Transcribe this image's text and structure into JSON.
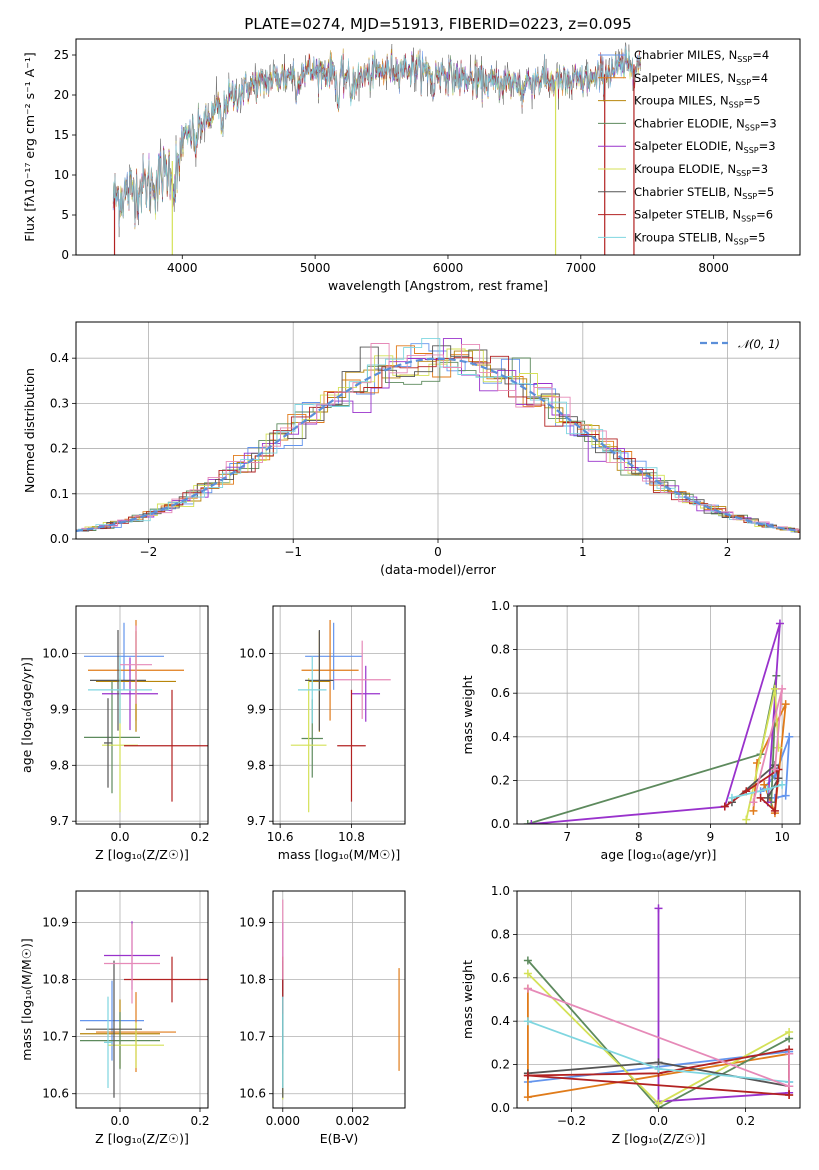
{
  "colors": {
    "chabrier_miles": "#6495ed",
    "salpeter_miles": "#e07b1a",
    "kroupa_miles": "#b8860b",
    "chabrier_elodie": "#5d8a5d",
    "salpeter_elodie": "#9932cc",
    "kroupa_elodie": "#d4e157",
    "chabrier_stelib": "#555555",
    "salpeter_stelib": "#b22222",
    "kroupa_stelib": "#7fd6e0",
    "extra_pink": "#e68ab8",
    "gauss": "#5b8fd9"
  },
  "chart_data": [
    {
      "id": "spectrum",
      "type": "line",
      "title": "PLATE=0274, MJD=51913, FIBERID=0223, z=0.095",
      "xlabel": "wavelength [Angstrom, rest frame]",
      "ylabel": "Flux [fλ10⁻¹⁷ erg cm⁻² s⁻¹ A⁻¹]",
      "xlim": [
        3200,
        8650
      ],
      "ylim": [
        0,
        27
      ],
      "xticks": [
        "4000",
        "5000",
        "6000",
        "7000",
        "8000"
      ],
      "yticks": [
        "0",
        "5",
        "10",
        "15",
        "20",
        "25"
      ],
      "continuum": {
        "x": [
          3480,
          3600,
          3700,
          3800,
          3900,
          4000,
          4100,
          4200,
          4300,
          4400,
          4500,
          4700,
          4900,
          5100,
          5300,
          5500,
          5700,
          5900,
          6100,
          6300,
          6500,
          6700,
          6900,
          7100,
          7300,
          7450
        ],
        "y": [
          7,
          8,
          8.5,
          9,
          11,
          14,
          16,
          17,
          19,
          20,
          21,
          22,
          23,
          23,
          22,
          23,
          23.5,
          23,
          22,
          21.5,
          21.5,
          22,
          21.5,
          22,
          23.5,
          24
        ]
      },
      "legend": [
        {
          "label": "Chabrier MILES, N",
          "sub": "SSP",
          "tail": "=4",
          "color": "#6495ed"
        },
        {
          "label": "Salpeter MILES, N",
          "sub": "SSP",
          "tail": "=4",
          "color": "#e07b1a"
        },
        {
          "label": "Kroupa MILES, N",
          "sub": "SSP",
          "tail": "=5",
          "color": "#b8860b"
        },
        {
          "label": "Chabrier ELODIE, N",
          "sub": "SSP",
          "tail": "=3",
          "color": "#5d8a5d"
        },
        {
          "label": "Salpeter ELODIE, N",
          "sub": "SSP",
          "tail": "=3",
          "color": "#9932cc"
        },
        {
          "label": "Kroupa ELODIE, N",
          "sub": "SSP",
          "tail": "=3",
          "color": "#d4e157"
        },
        {
          "label": "Chabrier STELIB, N",
          "sub": "SSP",
          "tail": "=5",
          "color": "#555555"
        },
        {
          "label": "Salpeter STELIB, N",
          "sub": "SSP",
          "tail": "=6",
          "color": "#b22222"
        },
        {
          "label": "Kroupa STELIB, N",
          "sub": "SSP",
          "tail": "=5",
          "color": "#7fd6e0"
        }
      ],
      "legend_position": "upper-right"
    },
    {
      "id": "residuals",
      "type": "line",
      "xlabel": "(data-model)/error",
      "ylabel": "Normed distribution",
      "xlim": [
        -2.5,
        2.5
      ],
      "ylim": [
        0,
        0.48
      ],
      "xticks": [
        "−2",
        "−1",
        "0",
        "1",
        "2"
      ],
      "yticks": [
        "0.0",
        "0.1",
        "0.2",
        "0.3",
        "0.4"
      ],
      "grid": true,
      "legend": [
        {
          "label": "𝒩(0, 1)",
          "color": "#5b8fd9",
          "style": "dashed"
        }
      ],
      "legend_position": "upper-right",
      "histogram_bins": 40
    },
    {
      "id": "age_vs_Z",
      "type": "scatter",
      "xlabel": "Z [log₁₀(Z/Z☉)]",
      "ylabel": "age  [log₁₀(age/yr)]",
      "xlim": [
        -0.11,
        0.22
      ],
      "ylim": [
        9.695,
        10.085
      ],
      "xticks": [
        "0.0",
        "0.2"
      ],
      "yticks": [
        "9.7",
        "9.8",
        "9.9",
        "10.0"
      ],
      "grid": true,
      "points": [
        {
          "x": 0.01,
          "y": 9.995,
          "xerr": 0.1,
          "yerr": 0.06,
          "color": "#6495ed"
        },
        {
          "x": 0.04,
          "y": 9.97,
          "xerr": 0.12,
          "yerr": 0.09,
          "color": "#e07b1a"
        },
        {
          "x": 0.04,
          "y": 9.95,
          "xerr": 0.1,
          "yerr": 0.09,
          "color": "#b8860b"
        },
        {
          "x": -0.02,
          "y": 9.85,
          "xerr": 0.07,
          "yerr": 0.1,
          "color": "#5d8a5d"
        },
        {
          "x": 0.025,
          "y": 9.928,
          "xerr": 0.07,
          "yerr": 0.065,
          "color": "#9932cc"
        },
        {
          "x": 0.0,
          "y": 9.836,
          "xerr": 0.045,
          "yerr": 0.12,
          "color": "#d4e157"
        },
        {
          "x": -0.005,
          "y": 9.952,
          "xerr": 0.07,
          "yerr": 0.09,
          "color": "#555555"
        },
        {
          "x": 0.13,
          "y": 9.835,
          "xerr": 0.12,
          "yerr": 0.1,
          "color": "#b22222"
        },
        {
          "x": 0.0,
          "y": 9.935,
          "xerr": 0.08,
          "yerr": 0.06,
          "color": "#7fd6e0"
        },
        {
          "x": 0.04,
          "y": 9.98,
          "xerr": 0.04,
          "yerr": 0.07,
          "color": "#e68ab8"
        },
        {
          "x": -0.03,
          "y": 9.84,
          "xerr": 0.01,
          "yerr": 0.08,
          "color": "#555555"
        }
      ]
    },
    {
      "id": "age_vs_mass",
      "type": "scatter",
      "xlabel": "mass [log₁₀(M/M☉)]",
      "ylabel": "",
      "xlim": [
        10.58,
        10.95
      ],
      "ylim": [
        9.695,
        10.085
      ],
      "xticks": [
        "10.6",
        "10.8"
      ],
      "yticks": [
        "9.7",
        "9.8",
        "9.9",
        "10.0"
      ],
      "grid": true,
      "points": [
        {
          "x": 10.75,
          "y": 9.995,
          "xerr": 0.08,
          "yerr": 0.06,
          "color": "#6495ed"
        },
        {
          "x": 10.74,
          "y": 9.97,
          "xerr": 0.08,
          "yerr": 0.09,
          "color": "#e07b1a"
        },
        {
          "x": 10.71,
          "y": 9.95,
          "xerr": 0.03,
          "yerr": 0.09,
          "color": "#b8860b"
        },
        {
          "x": 10.69,
          "y": 9.848,
          "xerr": 0.03,
          "yerr": 0.07,
          "color": "#5d8a5d"
        },
        {
          "x": 10.84,
          "y": 9.928,
          "xerr": 0.04,
          "yerr": 0.05,
          "color": "#9932cc"
        },
        {
          "x": 10.68,
          "y": 9.836,
          "xerr": 0.05,
          "yerr": 0.12,
          "color": "#d4e157"
        },
        {
          "x": 10.71,
          "y": 9.952,
          "xerr": 0.04,
          "yerr": 0.09,
          "color": "#555555"
        },
        {
          "x": 10.8,
          "y": 9.835,
          "xerr": 0.04,
          "yerr": 0.1,
          "color": "#b22222"
        },
        {
          "x": 10.69,
          "y": 9.935,
          "xerr": 0.04,
          "yerr": 0.06,
          "color": "#7fd6e0"
        },
        {
          "x": 10.83,
          "y": 9.953,
          "xerr": 0.08,
          "yerr": 0.07,
          "color": "#e68ab8"
        }
      ]
    },
    {
      "id": "weight_vs_age",
      "type": "line",
      "xlabel": "age  [log₁₀(age/yr)]",
      "ylabel": "mass weight",
      "xlim": [
        6.3,
        10.25
      ],
      "ylim": [
        0,
        1.0
      ],
      "xticks": [
        "7",
        "8",
        "9",
        "10"
      ],
      "yticks": [
        "0.0",
        "0.2",
        "0.4",
        "0.6",
        "0.8",
        "1.0"
      ],
      "grid": true,
      "series": [
        {
          "color": "#6495ed",
          "x": [
            9.7,
            9.9,
            10.1,
            10.05,
            9.9
          ],
          "y": [
            0.15,
            0.22,
            0.4,
            0.13,
            0.12
          ]
        },
        {
          "color": "#e07b1a",
          "x": [
            9.6,
            9.65,
            10.05,
            9.9,
            9.75
          ],
          "y": [
            0.06,
            0.28,
            0.55,
            0.05,
            0.18
          ]
        },
        {
          "color": "#5d8a5d",
          "x": [
            6.45,
            9.7,
            9.92,
            9.85
          ],
          "y": [
            0.0,
            0.32,
            0.68,
            0.1
          ]
        },
        {
          "color": "#9932cc",
          "x": [
            6.5,
            9.2,
            9.97,
            9.8
          ],
          "y": [
            0.0,
            0.08,
            0.92,
            0.1
          ]
        },
        {
          "color": "#d4e157",
          "x": [
            9.5,
            9.9,
            9.95
          ],
          "y": [
            0.02,
            0.62,
            0.35
          ]
        },
        {
          "color": "#555555",
          "x": [
            9.3,
            9.9,
            9.95,
            9.8
          ],
          "y": [
            0.1,
            0.27,
            0.21,
            0.12
          ]
        },
        {
          "color": "#b22222",
          "x": [
            9.2,
            9.5,
            9.95,
            9.9,
            9.7
          ],
          "y": [
            0.08,
            0.15,
            0.25,
            0.06,
            0.12
          ]
        },
        {
          "color": "#7fd6e0",
          "x": [
            9.3,
            9.8,
            10.0
          ],
          "y": [
            0.12,
            0.16,
            0.18
          ]
        },
        {
          "color": "#e68ab8",
          "x": [
            9.6,
            10.0,
            9.9
          ],
          "y": [
            0.1,
            0.62,
            0.25
          ]
        }
      ]
    },
    {
      "id": "mass_vs_Z",
      "type": "scatter",
      "xlabel": "Z [log₁₀(Z/Z☉)]",
      "ylabel": "mass [log₁₀(M/M☉)]",
      "xlim": [
        -0.11,
        0.22
      ],
      "ylim": [
        10.575,
        10.955
      ],
      "xticks": [
        "0.0",
        "0.2"
      ],
      "yticks": [
        "10.6",
        "10.7",
        "10.8",
        "10.9"
      ],
      "grid": true,
      "points": [
        {
          "x": -0.02,
          "y": 10.728,
          "xerr": 0.08,
          "yerr": 0.07,
          "color": "#6495ed"
        },
        {
          "x": 0.04,
          "y": 10.708,
          "xerr": 0.1,
          "yerr": 0.07,
          "color": "#e07b1a"
        },
        {
          "x": 0.0,
          "y": 10.705,
          "xerr": 0.1,
          "yerr": 0.06,
          "color": "#b8860b"
        },
        {
          "x": 0.0,
          "y": 10.693,
          "xerr": 0.1,
          "yerr": 0.05,
          "color": "#5d8a5d"
        },
        {
          "x": 0.03,
          "y": 10.842,
          "xerr": 0.07,
          "yerr": 0.06,
          "color": "#9932cc"
        },
        {
          "x": 0.04,
          "y": 10.685,
          "xerr": 0.07,
          "yerr": 0.04,
          "color": "#d4e157"
        },
        {
          "x": -0.015,
          "y": 10.713,
          "xerr": 0.07,
          "yerr": 0.12,
          "color": "#555555"
        },
        {
          "x": 0.13,
          "y": 10.8,
          "xerr": 0.12,
          "yerr": 0.04,
          "color": "#b22222"
        },
        {
          "x": -0.03,
          "y": 10.69,
          "xerr": 0.01,
          "yerr": 0.08,
          "color": "#7fd6e0"
        },
        {
          "x": 0.03,
          "y": 10.828,
          "xerr": 0.07,
          "yerr": 0.07,
          "color": "#e68ab8"
        }
      ]
    },
    {
      "id": "mass_vs_ebv",
      "type": "scatter",
      "xlabel": "E(B-V)",
      "ylabel": "",
      "xlim": [
        -0.00028,
        0.0035
      ],
      "ylim": [
        10.575,
        10.955
      ],
      "xticks": [
        "0.000",
        "0.002"
      ],
      "yticks": [
        "10.6",
        "10.7",
        "10.8",
        "10.9"
      ],
      "grid": true,
      "points": [
        {
          "x": 0.0,
          "y": 10.728,
          "yerr": 0.07,
          "color": "#6495ed"
        },
        {
          "x": 0.00333,
          "y": 10.73,
          "yerr": 0.09,
          "color": "#e07b1a"
        },
        {
          "x": 0.0,
          "y": 10.705,
          "yerr": 0.06,
          "color": "#b8860b"
        },
        {
          "x": 0.0,
          "y": 10.693,
          "yerr": 0.05,
          "color": "#5d8a5d"
        },
        {
          "x": 0.0,
          "y": 10.84,
          "yerr": 0.06,
          "color": "#9932cc"
        },
        {
          "x": 0.0,
          "y": 10.63,
          "yerr": 0.04,
          "color": "#d4e157"
        },
        {
          "x": 0.0,
          "y": 10.713,
          "yerr": 0.12,
          "color": "#555555"
        },
        {
          "x": 0.0,
          "y": 10.79,
          "yerr": 0.05,
          "color": "#b22222"
        },
        {
          "x": 0.0,
          "y": 10.69,
          "yerr": 0.08,
          "color": "#7fd6e0"
        },
        {
          "x": 0.0,
          "y": 10.87,
          "yerr": 0.07,
          "color": "#e68ab8"
        }
      ]
    },
    {
      "id": "weight_vs_Z",
      "type": "line",
      "xlabel": "Z [log₁₀(Z/Z☉)]",
      "ylabel": "mass weight",
      "xlim": [
        -0.325,
        0.325
      ],
      "ylim": [
        0,
        1.0
      ],
      "xticks": [
        "−0.2",
        "0.0",
        "0.2"
      ],
      "yticks": [
        "0.0",
        "0.2",
        "0.4",
        "0.6",
        "0.8",
        "1.0"
      ],
      "grid": true,
      "series": [
        {
          "color": "#6495ed",
          "x": [
            -0.3,
            0.3,
            0.3
          ],
          "y": [
            0.12,
            0.26,
            0.12
          ]
        },
        {
          "color": "#e07b1a",
          "x": [
            -0.3,
            -0.3,
            0.3,
            0.3
          ],
          "y": [
            0.55,
            0.05,
            0.25,
            0.06
          ]
        },
        {
          "color": "#5d8a5d",
          "x": [
            -0.3,
            0.0,
            0.3
          ],
          "y": [
            0.68,
            0.0,
            0.32
          ]
        },
        {
          "color": "#9932cc",
          "x": [
            0.0,
            0.0,
            0.3
          ],
          "y": [
            0.92,
            0.03,
            0.07
          ]
        },
        {
          "color": "#d4e157",
          "x": [
            -0.3,
            0.0,
            0.3
          ],
          "y": [
            0.62,
            0.02,
            0.35
          ]
        },
        {
          "color": "#555555",
          "x": [
            -0.3,
            0.0,
            0.3
          ],
          "y": [
            0.16,
            0.21,
            0.1
          ]
        },
        {
          "color": "#b22222",
          "x": [
            -0.3,
            0.0,
            0.3,
            0.3,
            -0.3
          ],
          "y": [
            0.15,
            0.16,
            0.27,
            0.06,
            0.15
          ]
        },
        {
          "color": "#7fd6e0",
          "x": [
            -0.3,
            0.0,
            0.3
          ],
          "y": [
            0.4,
            0.18,
            0.12
          ]
        },
        {
          "color": "#e68ab8",
          "x": [
            -0.3,
            0.3,
            0.3
          ],
          "y": [
            0.55,
            0.1,
            0.25
          ]
        }
      ]
    }
  ]
}
